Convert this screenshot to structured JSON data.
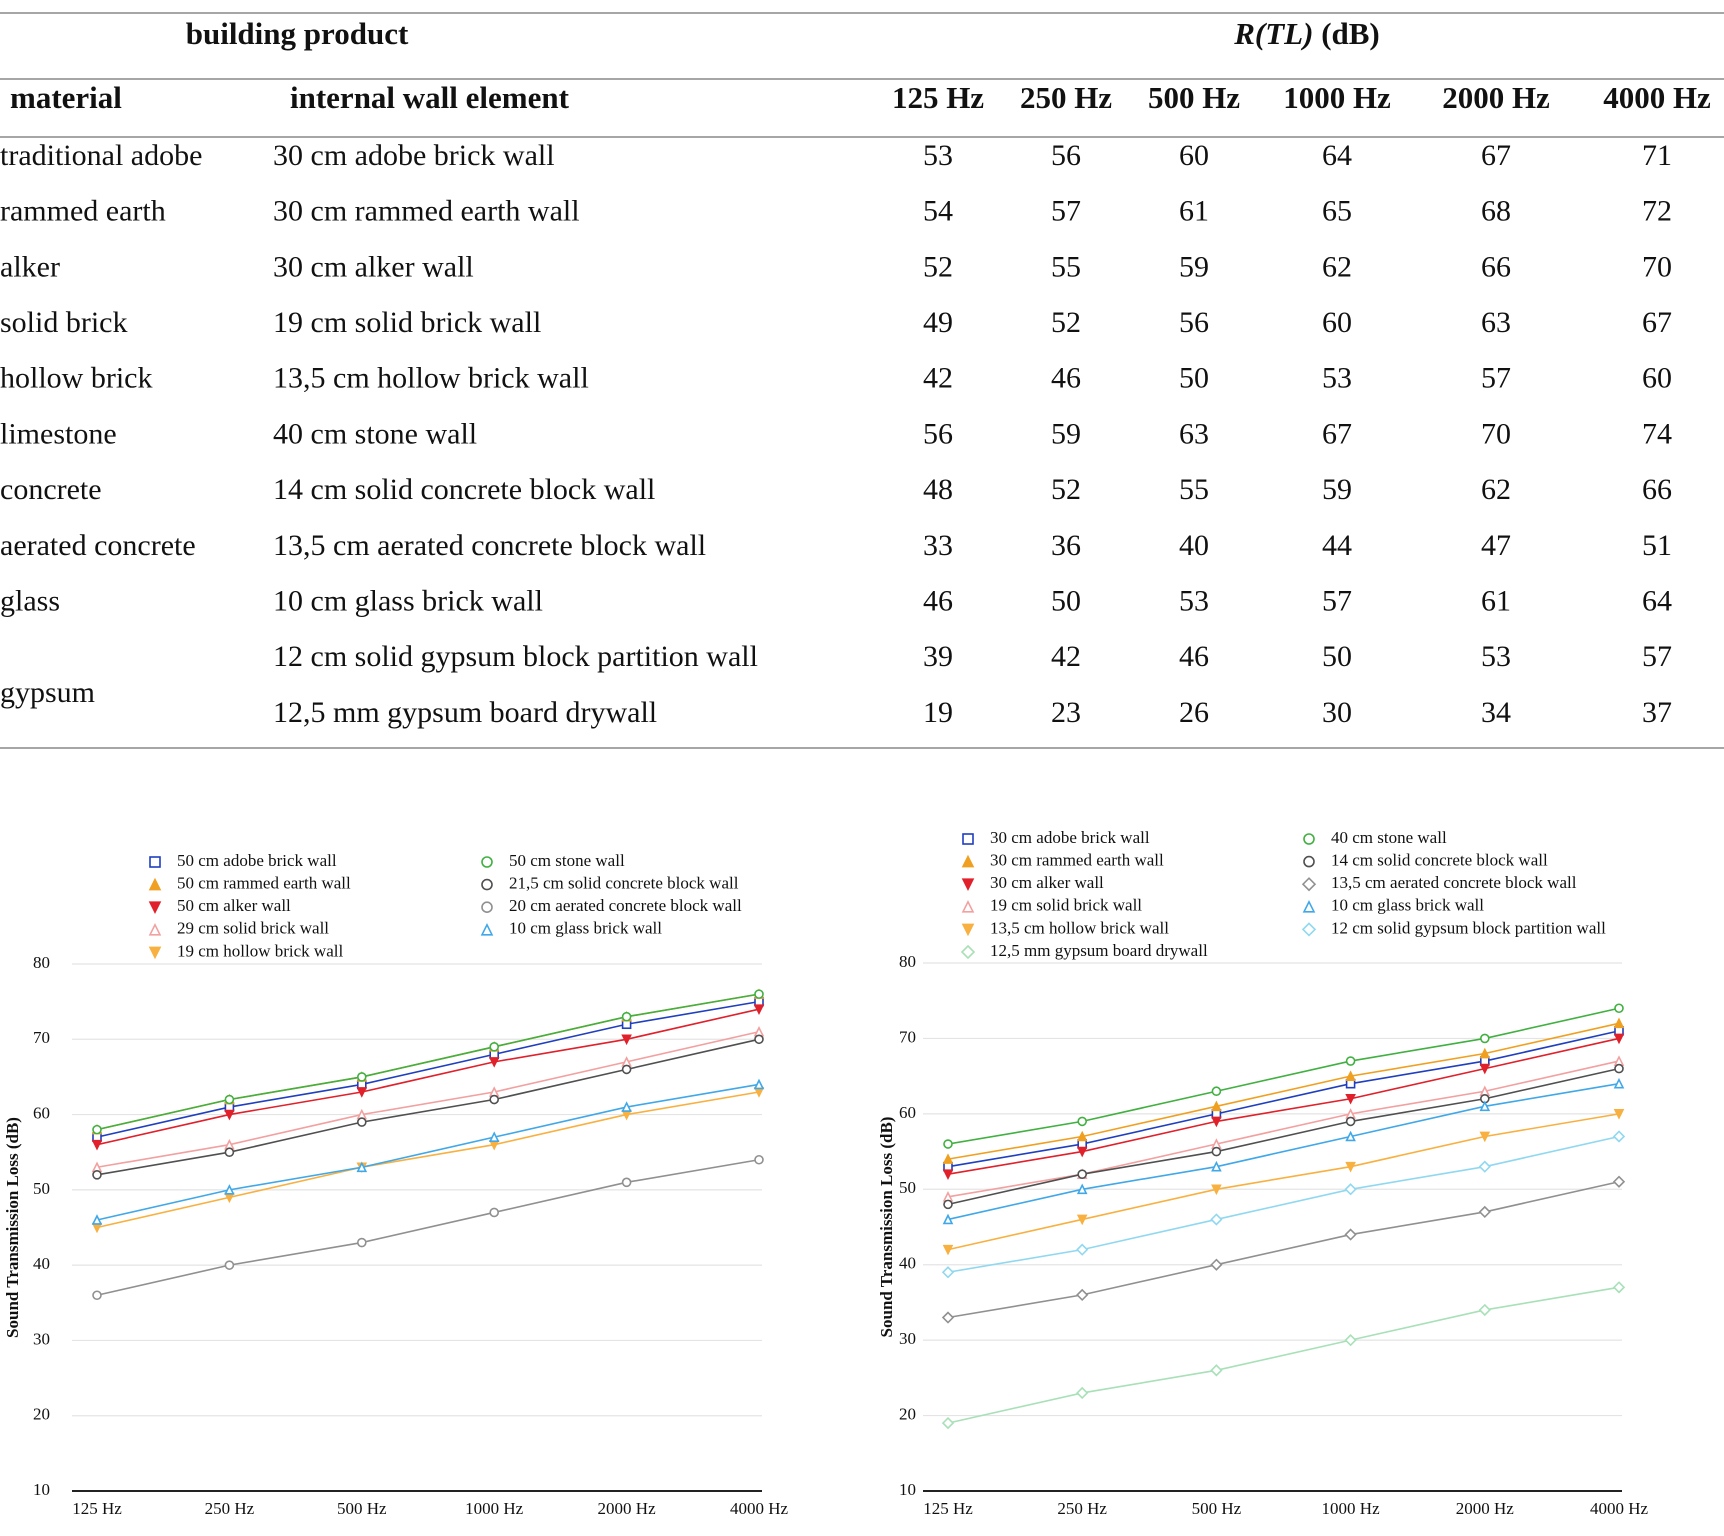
{
  "table": {
    "group_headers": {
      "product": "building product",
      "quantity": "R(TL)",
      "unit": "(dB)"
    },
    "columns": [
      "material",
      "internal wall element",
      "125 Hz",
      "250 Hz",
      "500 Hz",
      "1000 Hz",
      "2000 Hz",
      "4000 Hz"
    ],
    "rows": [
      {
        "material": "traditional adobe",
        "element": "30 cm adobe brick wall",
        "values": [
          53,
          56,
          60,
          64,
          67,
          71
        ]
      },
      {
        "material": "rammed earth",
        "element": "30 cm rammed earth wall",
        "values": [
          54,
          57,
          61,
          65,
          68,
          72
        ]
      },
      {
        "material": "alker",
        "element": "30 cm alker wall",
        "values": [
          52,
          55,
          59,
          62,
          66,
          70
        ]
      },
      {
        "material": "solid brick",
        "element": "19 cm solid brick wall",
        "values": [
          49,
          52,
          56,
          60,
          63,
          67
        ]
      },
      {
        "material": "hollow brick",
        "element": "13,5 cm hollow brick wall",
        "values": [
          42,
          46,
          50,
          53,
          57,
          60
        ]
      },
      {
        "material": "limestone",
        "element": "40 cm stone wall",
        "values": [
          56,
          59,
          63,
          67,
          70,
          74
        ]
      },
      {
        "material": "concrete",
        "element": "14 cm solid concrete block wall",
        "values": [
          48,
          52,
          55,
          59,
          62,
          66
        ]
      },
      {
        "material": "aerated concrete",
        "element": "13,5 cm aerated concrete block wall",
        "values": [
          33,
          36,
          40,
          44,
          47,
          51
        ]
      },
      {
        "material": "glass",
        "element": "10 cm glass brick wall",
        "values": [
          46,
          50,
          53,
          57,
          61,
          64
        ]
      },
      {
        "material": "gypsum",
        "element": "12 cm solid gypsum block partition wall",
        "values": [
          39,
          42,
          46,
          50,
          53,
          57
        ]
      },
      {
        "element": "12,5 mm gypsum board drywall",
        "values": [
          19,
          23,
          26,
          30,
          34,
          37
        ]
      }
    ]
  },
  "chart_data": [
    {
      "type": "line",
      "y_label": "Sound Transmission Loss (dB)",
      "categories": [
        "125 Hz",
        "250 Hz",
        "500 Hz",
        "1000 Hz",
        "2000 Hz",
        "4000 Hz"
      ],
      "ylim": [
        10,
        80
      ],
      "yticks": [
        10,
        20,
        30,
        40,
        50,
        60,
        70,
        80
      ],
      "grid": true,
      "series": [
        {
          "name": "50 cm adobe brick wall",
          "color": "#1f3fbf",
          "marker": "square",
          "values": [
            57,
            61,
            64,
            68,
            72,
            75
          ]
        },
        {
          "name": "50 cm rammed earth wall",
          "color": "#f0a020",
          "marker": "triangle",
          "values": [
            58,
            62,
            65,
            69,
            73,
            76
          ]
        },
        {
          "name": "50 cm alker wall",
          "color": "#e0202a",
          "marker": "triangle-down",
          "values": [
            56,
            60,
            63,
            67,
            70,
            74
          ]
        },
        {
          "name": "29 cm solid brick wall",
          "color": "#f2a0a0",
          "marker": "triangle-open",
          "values": [
            53,
            56,
            60,
            63,
            67,
            71
          ]
        },
        {
          "name": "19 cm hollow brick wall",
          "color": "#f8b040",
          "marker": "triangle-down",
          "values": [
            45,
            49,
            53,
            56,
            60,
            63
          ]
        },
        {
          "name": "50 cm stone wall",
          "color": "#40b040",
          "marker": "circle",
          "values": [
            58,
            62,
            65,
            69,
            73,
            76
          ]
        },
        {
          "name": "21,5 cm solid concrete block wall",
          "color": "#505050",
          "marker": "circle",
          "values": [
            52,
            55,
            59,
            62,
            66,
            70
          ]
        },
        {
          "name": "20 cm aerated concrete block wall",
          "color": "#909090",
          "marker": "circle",
          "values": [
            36,
            40,
            43,
            47,
            51,
            54
          ]
        },
        {
          "name": "10 cm glass brick wall",
          "color": "#40a8e8",
          "marker": "triangle-open",
          "values": [
            46,
            50,
            53,
            57,
            61,
            64
          ]
        }
      ]
    },
    {
      "type": "line",
      "y_label": "Sound Transmission Loss (dB)",
      "categories": [
        "125 Hz",
        "250 Hz",
        "500 Hz",
        "1000 Hz",
        "2000 Hz",
        "4000 Hz"
      ],
      "ylim": [
        10,
        80
      ],
      "yticks": [
        10,
        20,
        30,
        40,
        50,
        60,
        70,
        80
      ],
      "grid": true,
      "series": [
        {
          "name": "30 cm adobe brick wall",
          "color": "#1f3fbf",
          "marker": "square",
          "values": [
            53,
            56,
            60,
            64,
            67,
            71
          ]
        },
        {
          "name": "30 cm rammed earth wall",
          "color": "#f0a020",
          "marker": "triangle",
          "values": [
            54,
            57,
            61,
            65,
            68,
            72
          ]
        },
        {
          "name": "30 cm alker wall",
          "color": "#e0202a",
          "marker": "triangle-down",
          "values": [
            52,
            55,
            59,
            62,
            66,
            70
          ]
        },
        {
          "name": "19 cm solid brick wall",
          "color": "#f2a0a0",
          "marker": "triangle-open",
          "values": [
            49,
            52,
            56,
            60,
            63,
            67
          ]
        },
        {
          "name": "13,5 cm hollow brick wall",
          "color": "#f8b040",
          "marker": "triangle-down",
          "values": [
            42,
            46,
            50,
            53,
            57,
            60
          ]
        },
        {
          "name": "12,5 mm gypsum board drywall",
          "color": "#a8e0b8",
          "marker": "diamond",
          "values": [
            19,
            23,
            26,
            30,
            34,
            37
          ]
        },
        {
          "name": "40 cm stone wall",
          "color": "#40b040",
          "marker": "circle",
          "values": [
            56,
            59,
            63,
            67,
            70,
            74
          ]
        },
        {
          "name": "14 cm solid concrete block wall",
          "color": "#505050",
          "marker": "circle",
          "values": [
            48,
            52,
            55,
            59,
            62,
            66
          ]
        },
        {
          "name": "13,5 cm aerated concrete block wall",
          "color": "#909090",
          "marker": "diamond",
          "values": [
            33,
            36,
            40,
            44,
            47,
            51
          ]
        },
        {
          "name": "10 cm glass brick wall",
          "color": "#40a8e8",
          "marker": "triangle-open",
          "values": [
            46,
            50,
            53,
            57,
            61,
            64
          ]
        },
        {
          "name": "12 cm solid gypsum block partition wall",
          "color": "#90d8f0",
          "marker": "diamond",
          "values": [
            39,
            42,
            46,
            50,
            53,
            57
          ]
        }
      ]
    }
  ]
}
